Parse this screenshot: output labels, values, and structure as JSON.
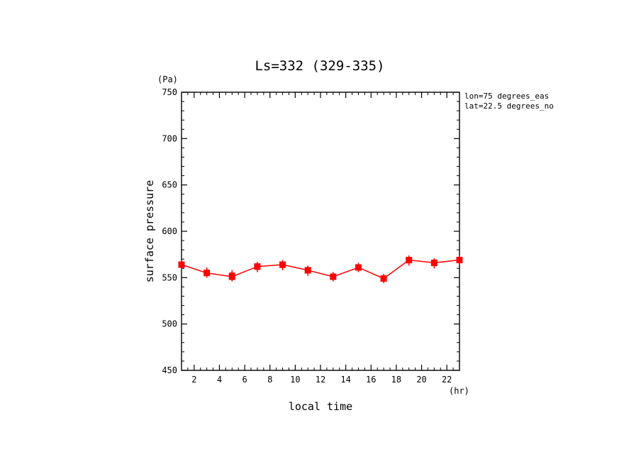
{
  "chart_data": {
    "type": "line",
    "title": "Ls=332 (329-335)",
    "xlabel": "local time",
    "ylabel": "surface pressure",
    "x_unit": "(hr)",
    "y_unit": "(Pa)",
    "xlim": [
      1,
      23
    ],
    "ylim": [
      450,
      750
    ],
    "x_ticks": [
      2,
      4,
      6,
      8,
      10,
      12,
      14,
      16,
      18,
      20,
      22
    ],
    "y_ticks": [
      450,
      500,
      550,
      600,
      650,
      700,
      750
    ],
    "annotations": [
      "lon=75 degrees_eas",
      "lat=22.5 degrees_no"
    ],
    "grid": false,
    "series": [
      {
        "color": "#ff0000",
        "x": [
          1,
          3,
          5,
          7,
          9,
          11,
          13,
          15,
          17,
          19,
          21,
          23
        ],
        "values": [
          564,
          555,
          551,
          562,
          564,
          558,
          551,
          561,
          549,
          569,
          566,
          569
        ],
        "scatter": [
          [
            [
              1,
              566
            ],
            [
              1,
              562
            ]
          ],
          [
            [
              3,
              558
            ],
            [
              3,
              553
            ]
          ],
          [
            [
              5,
              555
            ],
            [
              5,
              549
            ]
          ],
          [
            [
              7,
              564
            ],
            [
              7,
              559
            ]
          ],
          [
            [
              9,
              566
            ],
            [
              9,
              561
            ]
          ],
          [
            [
              11,
              560
            ],
            [
              11,
              555
            ]
          ],
          [
            [
              13,
              553
            ],
            [
              13,
              549
            ]
          ],
          [
            [
              15,
              563
            ],
            [
              15,
              559
            ]
          ],
          [
            [
              17,
              551
            ],
            [
              17,
              547
            ]
          ],
          [
            [
              19,
              571
            ],
            [
              19,
              566
            ]
          ],
          [
            [
              21,
              568
            ],
            [
              21,
              563
            ]
          ],
          [
            [
              23,
              571
            ],
            [
              23,
              567
            ]
          ]
        ]
      }
    ]
  }
}
